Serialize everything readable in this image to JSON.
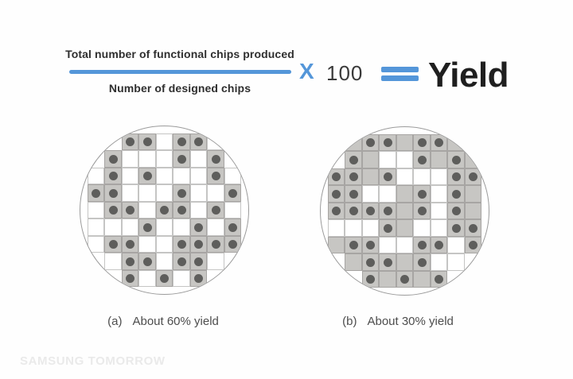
{
  "formula": {
    "numerator": "Total number of functional chips produced",
    "denominator": "Number of designed chips",
    "multiply_sign": "X",
    "multiplier": "100",
    "equals_sign": "=",
    "result": "Yield"
  },
  "wafers": [
    {
      "label": "(a)",
      "caption": "About 60% yield",
      "grid": [
        "..ddwddw.",
        ".dwwwdwd.",
        "wdwdwwwdw",
        "ddwwwdwwd",
        "wddwddwdw",
        "wwwdwwdwd",
        "wddwwdddd",
        ".wddwddw.",
        "..dwdwd.."
      ]
    },
    {
      "label": "(b)",
      "caption": "About 30% yield",
      "grid": [
        ".gddgddg.",
        ".dgwwdgdg",
        "ddgdwwwdd",
        "ddwwgdwdg",
        "ddddgdwdg",
        "wwwdgwwdd",
        "gddwwddwd",
        ".gddgdww.",
        "..dgdgd.."
      ]
    }
  ],
  "watermark": "SAMSUNG TOMORROW",
  "colors": {
    "accent_blue": "#5496d9",
    "text_dark": "#2f2f2f",
    "cell_gray": "#c7c6c3",
    "dot_gray": "#5e5e5c",
    "circle_border": "#9b9b9b",
    "caption_gray": "#4d4d4d",
    "watermark_gray": "#eaeaea"
  }
}
